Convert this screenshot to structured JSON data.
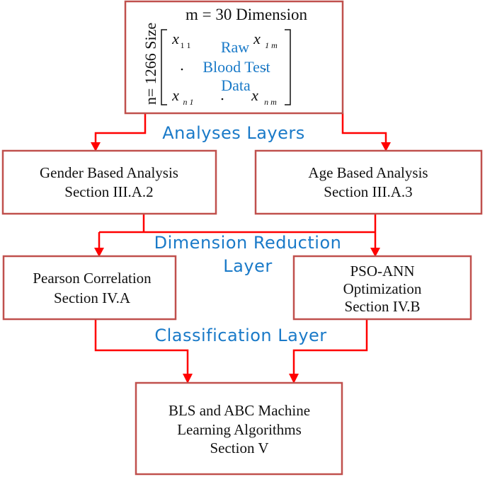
{
  "top_box": {
    "dimension_label": "m = 30 Dimension",
    "size_label": "n= 1266 Size",
    "matrix": {
      "x11": "x",
      "x11_sub": "1 1",
      "x1m": "x",
      "x1m_sub": "1 m",
      "xn1": "x",
      "xn1_sub": "n 1",
      "xnm": "x",
      "xnm_sub": "n m"
    },
    "title_lines": [
      "Raw",
      "Blood Test",
      "Data"
    ]
  },
  "layers": {
    "analyses": "Analyses Layers",
    "dimension_reduction": [
      "Dimension Reduction",
      "Layer"
    ],
    "classification": "Classification Layer"
  },
  "boxes": {
    "gender": [
      "Gender Based Analysis",
      "Section III.A.2"
    ],
    "age": [
      "Age Based Analysis",
      "Section III.A.3"
    ],
    "pearson": [
      "Pearson Correlation",
      "Section IV.A"
    ],
    "pso": [
      "PSO-ANN",
      "Optimization",
      "Section IV.B"
    ],
    "bls": [
      "BLS and ABC Machine",
      "Learning Algorithms",
      "Section V"
    ]
  },
  "colors": {
    "box_border": "#c0504d",
    "arrow": "#ff0000",
    "layer_text": "#1a7ac8"
  }
}
